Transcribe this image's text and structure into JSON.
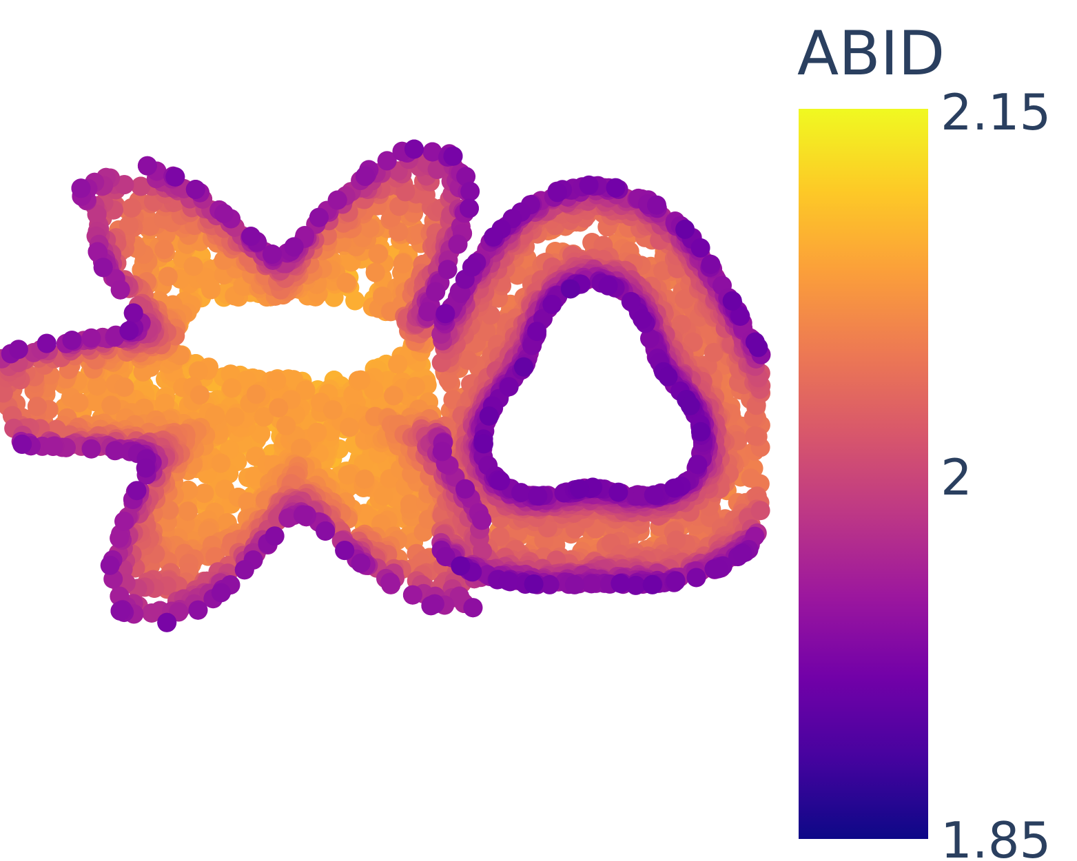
{
  "chart_data": {
    "type": "scatter",
    "title": "",
    "xlabel": "",
    "ylabel": "",
    "grid": false,
    "axes_visible": false,
    "description_of_marks": "dense 2D projection of a twisted torus-like point cloud, each point colored by ABID value",
    "colorscale": "plasma",
    "colorscale_stops": [
      "#0d0887",
      "#46039f",
      "#7201a8",
      "#9c179e",
      "#bd3786",
      "#d8576b",
      "#ed7953",
      "#fb9f3a",
      "#fdca26",
      "#f0f921"
    ],
    "colorbar": {
      "title": "ABID",
      "ticks": [
        "2.15",
        "2",
        "1.85"
      ],
      "tick_values": [
        2.15,
        2.0,
        1.85
      ],
      "range": [
        1.85,
        2.15
      ]
    },
    "value_summary": {
      "min": 1.85,
      "max": 2.15,
      "typical_interior": 2.07,
      "typical_edge": 1.93
    }
  }
}
